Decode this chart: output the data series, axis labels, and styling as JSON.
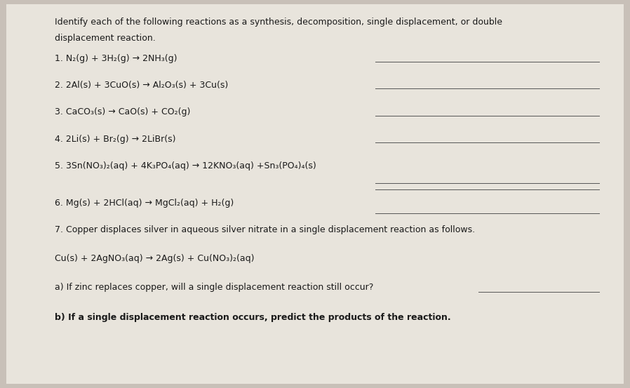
{
  "bg_color": "#c8c0b8",
  "paper_color": "#e8e4dc",
  "text_color": "#1a1a1a",
  "title_line1": "Identify each of the following reactions as a synthesis, decomposition, single displacement, or double",
  "title_line2": "displacement reaction.",
  "reactions": [
    "1. N₂(g) + 3H₂(g) → 2NH₃(g)",
    "2. 2Al(s) + 3CuO(s) → Al₂O₃(s) + 3Cu(s)",
    "3. CaCO₃(s) → CaO(s) + CO₂(g)",
    "4. 2Li(s) + Br₂(g) → 2LiBr(s)",
    "5. 3Sn(NO₃)₂(aq) + 4K₃PO₄(aq) → 12KNO₃(aq) +Sn₃(PO₄)₄(s)",
    "6. Mg(s) + 2HCl(aq) → MgCl₂(aq) + H₂(g)"
  ],
  "item7_text": "7. Copper displaces silver in aqueous silver nitrate in a single displacement reaction as follows.",
  "cu_reaction": "Cu(s) + 2AgNO₃(aq) → 2Ag(s) + Cu(NO₃)₂(aq)",
  "part_a": "a) If zinc replaces copper, will a single displacement reaction still occur?",
  "part_b": "b) If a single displacement reaction occurs, predict the products of the reaction.",
  "fontsize": 9.0,
  "title_fontsize": 9.0
}
